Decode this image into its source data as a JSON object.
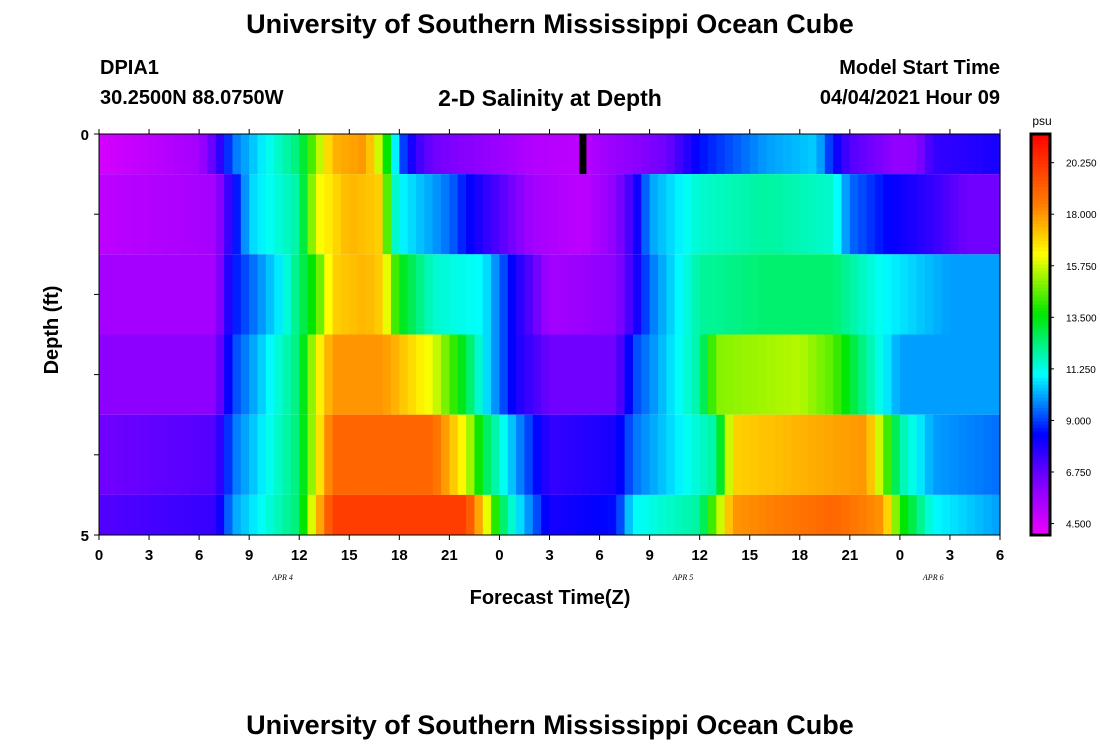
{
  "header": {
    "title": "University of Southern Mississippi Ocean Cube",
    "station_id": "DPIA1",
    "station_coords": "30.2500N  88.0750W",
    "plot_title": "2-D Salinity at Depth",
    "model_label": "Model Start Time",
    "model_time": "04/04/2021 Hour 09"
  },
  "footer": {
    "title": "University of Southern Mississippi Ocean Cube"
  },
  "chart_data": {
    "type": "heatmap",
    "title": "2-D Salinity at Depth",
    "xlabel": "Forecast Time(Z)",
    "ylabel": "Depth (ft)",
    "x_tick_labels": [
      "0",
      "3",
      "6",
      "9",
      "12",
      "15",
      "18",
      "21",
      "0",
      "3",
      "6",
      "9",
      "12",
      "15",
      "18",
      "21",
      "0",
      "3",
      "6"
    ],
    "date_labels": [
      {
        "label": "APR 4",
        "hour": 11
      },
      {
        "label": "APR 5",
        "hour": 35
      },
      {
        "label": "APR 6",
        "hour": 50
      }
    ],
    "x_range_hours": [
      0,
      54
    ],
    "y_tick_labels": [
      "0",
      "5"
    ],
    "ylim": [
      0,
      5
    ],
    "colorbar": {
      "unit": "psu",
      "range": [
        4.0,
        21.5
      ],
      "tick_labels": [
        "4.500",
        "6.750",
        "9.000",
        "11.250",
        "13.500",
        "15.750",
        "18.000",
        "20.250"
      ],
      "tick_values": [
        4.5,
        6.75,
        9.0,
        11.25,
        13.5,
        15.75,
        18.0,
        20.25
      ]
    },
    "current_time_marker_hour": 29,
    "depth_layers": [
      {
        "depth_range": [
          0,
          0.5
        ],
        "keys": [
          [
            0,
            4.5
          ],
          [
            6,
            5.5
          ],
          [
            7,
            7
          ],
          [
            8,
            9.5
          ],
          [
            12,
            12.5
          ],
          [
            13,
            15
          ],
          [
            14,
            17.5
          ],
          [
            16,
            18
          ],
          [
            17,
            15
          ],
          [
            18,
            9.5
          ],
          [
            19,
            7.5
          ],
          [
            20,
            6.5
          ],
          [
            25,
            5.5
          ],
          [
            26,
            5.2
          ],
          [
            29,
            5
          ],
          [
            30,
            5.5
          ],
          [
            34,
            6.5
          ],
          [
            36,
            8.5
          ],
          [
            40,
            10
          ],
          [
            43,
            10.5
          ],
          [
            44,
            8.5
          ],
          [
            45,
            7
          ],
          [
            48,
            5.8
          ],
          [
            49,
            6
          ],
          [
            50,
            7.5
          ],
          [
            54,
            8
          ]
        ]
      },
      {
        "depth_range": [
          0.5,
          1.5
        ],
        "keys": [
          [
            0,
            5
          ],
          [
            7,
            5.5
          ],
          [
            8,
            8
          ],
          [
            9,
            10.5
          ],
          [
            12,
            12
          ],
          [
            13,
            16
          ],
          [
            15,
            17.5
          ],
          [
            17,
            17
          ],
          [
            17.5,
            12
          ],
          [
            18,
            11
          ],
          [
            20,
            10
          ],
          [
            21,
            9.5
          ],
          [
            22,
            8.5
          ],
          [
            24,
            7
          ],
          [
            26,
            5.5
          ],
          [
            29,
            5
          ],
          [
            31,
            6
          ],
          [
            32,
            7.5
          ],
          [
            33,
            10
          ],
          [
            36,
            11.5
          ],
          [
            40,
            12
          ],
          [
            44,
            11.5
          ],
          [
            45,
            9.5
          ],
          [
            47,
            8.5
          ],
          [
            50,
            7.5
          ],
          [
            52,
            6.5
          ],
          [
            54,
            6.5
          ]
        ]
      },
      {
        "depth_range": [
          1.5,
          2.5
        ],
        "keys": [
          [
            0,
            5.5
          ],
          [
            7,
            5.5
          ],
          [
            8,
            8.5
          ],
          [
            11,
            11
          ],
          [
            13,
            14
          ],
          [
            14,
            17
          ],
          [
            16,
            17.5
          ],
          [
            17,
            17
          ],
          [
            17.5,
            15
          ],
          [
            18,
            13.5
          ],
          [
            20,
            11.5
          ],
          [
            23,
            11
          ],
          [
            25,
            8
          ],
          [
            27,
            5.5
          ],
          [
            31,
            6
          ],
          [
            32,
            7.5
          ],
          [
            33,
            9.5
          ],
          [
            36,
            12
          ],
          [
            40,
            12.5
          ],
          [
            44,
            12.5
          ],
          [
            47,
            11
          ],
          [
            51,
            10
          ],
          [
            54,
            10
          ]
        ]
      },
      {
        "depth_range": [
          2.5,
          3.5
        ],
        "keys": [
          [
            0,
            6
          ],
          [
            7,
            6
          ],
          [
            8,
            9
          ],
          [
            12,
            12.5
          ],
          [
            13,
            16
          ],
          [
            14,
            18
          ],
          [
            17,
            18
          ],
          [
            20,
            16
          ],
          [
            22,
            13
          ],
          [
            23,
            11
          ],
          [
            25,
            8
          ],
          [
            27,
            6.5
          ],
          [
            31,
            6.5
          ],
          [
            32,
            9
          ],
          [
            36,
            12
          ],
          [
            37,
            15
          ],
          [
            42,
            15.5
          ],
          [
            44,
            14.5
          ],
          [
            46,
            12
          ],
          [
            48,
            10
          ],
          [
            54,
            10
          ]
        ]
      },
      {
        "depth_range": [
          3.5,
          4.5
        ],
        "keys": [
          [
            0,
            6.5
          ],
          [
            7,
            7
          ],
          [
            8,
            9.5
          ],
          [
            12,
            12.5
          ],
          [
            13,
            16
          ],
          [
            14,
            19
          ],
          [
            20,
            19
          ],
          [
            22,
            16
          ],
          [
            23,
            13
          ],
          [
            25,
            10
          ],
          [
            27,
            7.5
          ],
          [
            31,
            8
          ],
          [
            32,
            9.5
          ],
          [
            37,
            12
          ],
          [
            38,
            17
          ],
          [
            46,
            18
          ],
          [
            47,
            15
          ],
          [
            48,
            12
          ],
          [
            50,
            10
          ],
          [
            54,
            9.5
          ]
        ]
      },
      {
        "depth_range": [
          4.5,
          5.0
        ],
        "keys": [
          [
            0,
            7
          ],
          [
            7,
            7.5
          ],
          [
            8,
            10
          ],
          [
            12,
            12.5
          ],
          [
            13,
            17
          ],
          [
            14,
            20
          ],
          [
            22,
            20
          ],
          [
            23,
            17
          ],
          [
            24,
            13
          ],
          [
            25,
            11
          ],
          [
            27,
            8
          ],
          [
            31,
            8.5
          ],
          [
            32,
            11
          ],
          [
            36,
            12
          ],
          [
            38,
            18
          ],
          [
            44,
            19
          ],
          [
            47,
            18
          ],
          [
            48,
            14
          ],
          [
            50,
            11
          ],
          [
            54,
            10
          ]
        ]
      }
    ]
  }
}
